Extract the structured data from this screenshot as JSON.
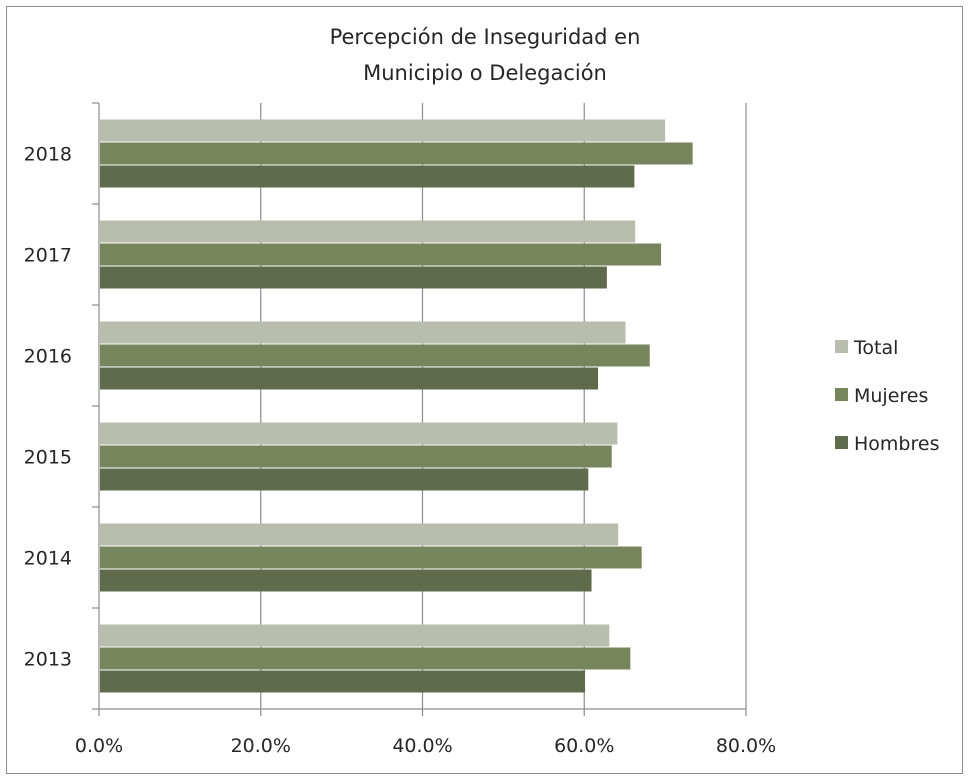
{
  "chart_data": {
    "type": "bar",
    "orientation": "horizontal",
    "title": "Percepción de Inseguridad en Municipio o Delegación",
    "title_lines": [
      "Percepción de Inseguridad en",
      "Municipio o Delegación"
    ],
    "categories": [
      "2013",
      "2014",
      "2015",
      "2016",
      "2017",
      "2018"
    ],
    "series": [
      {
        "name": "Total",
        "color": "#b9bdae",
        "values": [
          63.1,
          64.2,
          64.1,
          65.1,
          66.3,
          70.0
        ]
      },
      {
        "name": "Mujeres",
        "color": "#77855d",
        "values": [
          65.7,
          67.1,
          63.4,
          68.1,
          69.5,
          73.4
        ]
      },
      {
        "name": "Hombres",
        "color": "#5f6b4a",
        "values": [
          60.1,
          60.9,
          60.5,
          61.7,
          62.8,
          66.2
        ]
      }
    ],
    "xlim": [
      0,
      80
    ],
    "xticks": [
      "0.0%",
      "20.0%",
      "40.0%",
      "60.0%",
      "80.0%"
    ],
    "grid": true,
    "legend_position": "right"
  }
}
